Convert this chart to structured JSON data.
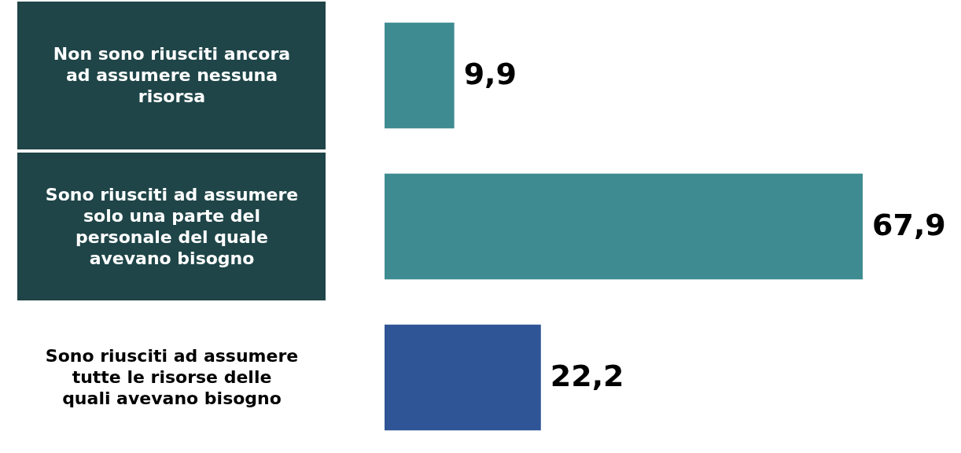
{
  "chart_data": {
    "type": "bar",
    "orientation": "horizontal",
    "categories": [
      "Non sono riusciti ancora ad assumere nessuna risorsa",
      "Sono riusciti ad assumere solo una parte del personale del quale avevano bisogno",
      "Sono riusciti ad assumere tutte  le risorse delle quali avevano bisogno"
    ],
    "values": [
      9.9,
      67.9,
      22.2
    ],
    "colors": [
      "#3e8c91",
      "#3e8c91",
      "#2f5597"
    ],
    "value_labels": [
      "9,9",
      "67,9",
      "22,2"
    ],
    "tick_labels": "y"
  }
}
